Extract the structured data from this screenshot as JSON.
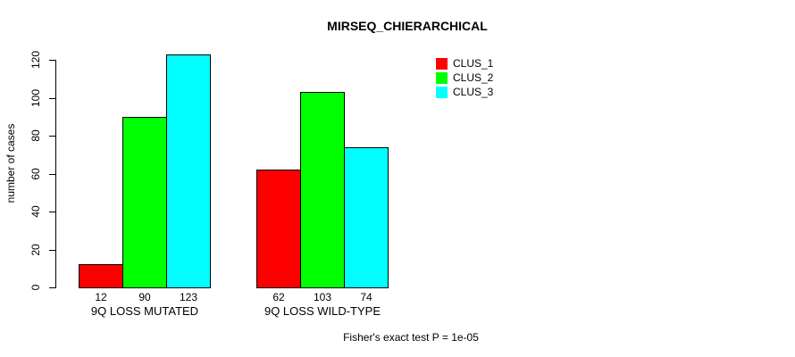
{
  "chart_data": {
    "type": "bar",
    "title": "MIRSEQ_CHIERARCHICAL",
    "categories": [
      "9Q LOSS MUTATED",
      "9Q LOSS WILD-TYPE"
    ],
    "series": [
      {
        "name": "CLUS_1",
        "color": "#FF0000",
        "values": [
          12,
          62
        ]
      },
      {
        "name": "CLUS_2",
        "color": "#00FF00",
        "values": [
          90,
          103
        ]
      },
      {
        "name": "CLUS_3",
        "color": "#00FFFF",
        "values": [
          123,
          74
        ]
      }
    ],
    "xlabel": "",
    "ylabel": "number of cases",
    "yticks": [
      0,
      20,
      40,
      60,
      80,
      100,
      120
    ],
    "ylim": [
      0,
      123
    ],
    "grid": false,
    "legend_position": "top-right",
    "show_bar_values": true,
    "annotation": "Fisher's exact test P = 1e-05"
  }
}
